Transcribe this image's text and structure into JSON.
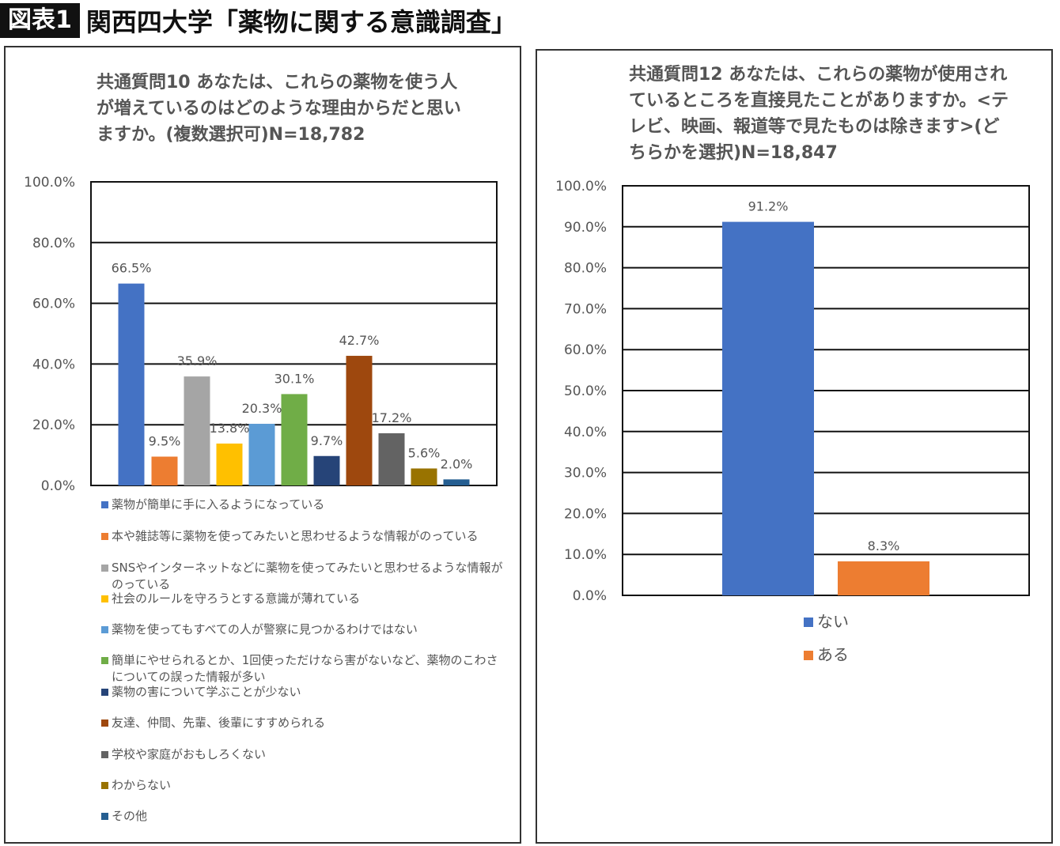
{
  "header": {
    "badge": "図表1",
    "title": "関西四大学「薬物に関する意識調査」"
  },
  "chart_data": [
    {
      "type": "bar",
      "title": "共通質問10 あなたは、これらの薬物を使う人が増えているのはどのような理由からだと思いますか。(複数選択可)N=18,782",
      "title_lines": [
        "共通質問10 あなたは、これらの薬物を使う人",
        "が増えているのはどのような理由からだと思い",
        "ますか。(複数選択可)N=18,782"
      ],
      "ylim": [
        0,
        100
      ],
      "yticks": [
        "0.0%",
        "20.0%",
        "40.0%",
        "60.0%",
        "80.0%",
        "100.0%"
      ],
      "grid": true,
      "legend_position": "bottom",
      "series": [
        {
          "name": "薬物が簡単に手に入るようになっている",
          "value": 66.5,
          "label": "66.5%",
          "color": "#4472C4"
        },
        {
          "name": "本や雑誌等に薬物を使ってみたいと思わせるような情報がのっている",
          "value": 9.5,
          "label": "9.5%",
          "color": "#ED7D31"
        },
        {
          "name": "SNSやインターネットなどに薬物を使ってみたいと思わせるような情報がのっている",
          "value": 35.9,
          "label": "35.9%",
          "color": "#A5A5A5"
        },
        {
          "name": "社会のルールを守ろうとする意識が薄れている",
          "value": 13.8,
          "label": "13.8%",
          "color": "#FFC000"
        },
        {
          "name": "薬物を使ってもすべての人が警察に見つかるわけではない",
          "value": 20.3,
          "label": "20.3%",
          "color": "#5B9BD5"
        },
        {
          "name": "簡単にやせられるとか、1回使っただけなら害がないなど、薬物のこわさについての誤った情報が多い",
          "value": 30.1,
          "label": "30.1%",
          "color": "#70AD47"
        },
        {
          "name": "薬物の害について学ぶことが少ない",
          "value": 9.7,
          "label": "9.7%",
          "color": "#264478"
        },
        {
          "name": "友達、仲間、先輩、後輩にすすめられる",
          "value": 42.7,
          "label": "42.7%",
          "color": "#9E480E"
        },
        {
          "name": "学校や家庭がおもしろくない",
          "value": 17.2,
          "label": "17.2%",
          "color": "#636363"
        },
        {
          "name": "わからない",
          "value": 5.6,
          "label": "5.6%",
          "color": "#997300"
        },
        {
          "name": "その他",
          "value": 2.0,
          "label": "2.0%",
          "color": "#255E91"
        }
      ]
    },
    {
      "type": "bar",
      "title": "共通質問12 あなたは、これらの薬物が使用されているところを直接見たことがありますか。<テレビ、映画、報道等で見たものは除きます>(どちらかを選択)N=18,847",
      "title_lines": [
        "共通質問12 あなたは、これらの薬物が使用さ",
        "れているところを直接見たことがありますか。<",
        "テレビ、映画、報道等で見たものは除きます>",
        "(どちらかを選択)N=18,847"
      ],
      "ylim": [
        0,
        100
      ],
      "yticks": [
        "0.0%",
        "10.0%",
        "20.0%",
        "30.0%",
        "40.0%",
        "50.0%",
        "60.0%",
        "70.0%",
        "80.0%",
        "90.0%",
        "100.0%"
      ],
      "grid": true,
      "legend_position": "bottom",
      "series": [
        {
          "name": "ない",
          "value": 91.2,
          "label": "91.2%",
          "color": "#4472C4"
        },
        {
          "name": "ある",
          "value": 8.3,
          "label": "8.3%",
          "color": "#ED7D31"
        }
      ]
    }
  ]
}
